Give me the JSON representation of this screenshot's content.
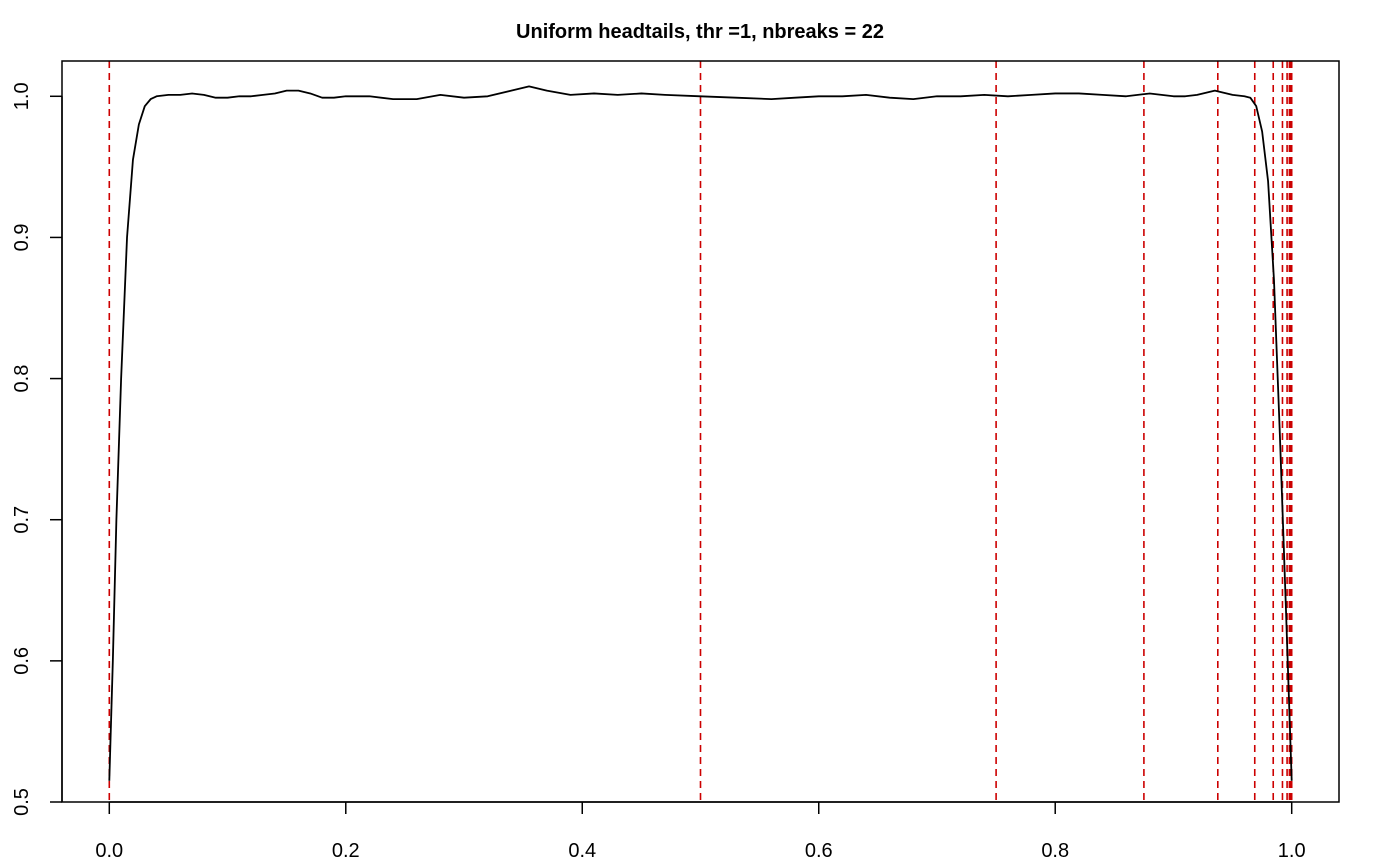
{
  "chart_data": {
    "type": "line",
    "title": "Uniform headtails, thr =1, nbreaks = 22",
    "xlabel": "",
    "ylabel": "",
    "xlim": [
      -0.04,
      1.04
    ],
    "ylim": [
      0.5,
      1.025
    ],
    "x_ticks": [
      "0.0",
      "0.2",
      "0.4",
      "0.6",
      "0.8",
      "1.0"
    ],
    "y_ticks": [
      "0.5",
      "0.6",
      "0.7",
      "0.8",
      "0.9",
      "1.0"
    ],
    "grid": false,
    "series": [
      {
        "color": "#000000",
        "x": [
          0.0,
          0.003,
          0.006,
          0.01,
          0.015,
          0.02,
          0.025,
          0.03,
          0.035,
          0.04,
          0.05,
          0.06,
          0.07,
          0.08,
          0.09,
          0.1,
          0.11,
          0.12,
          0.13,
          0.14,
          0.15,
          0.16,
          0.17,
          0.18,
          0.19,
          0.2,
          0.22,
          0.24,
          0.26,
          0.28,
          0.3,
          0.32,
          0.34,
          0.355,
          0.37,
          0.39,
          0.41,
          0.43,
          0.45,
          0.47,
          0.5,
          0.53,
          0.56,
          0.58,
          0.6,
          0.62,
          0.64,
          0.66,
          0.68,
          0.7,
          0.72,
          0.74,
          0.76,
          0.78,
          0.8,
          0.82,
          0.84,
          0.86,
          0.88,
          0.9,
          0.91,
          0.92,
          0.935,
          0.95,
          0.96,
          0.965,
          0.97,
          0.975,
          0.98,
          0.985,
          0.99,
          0.995,
          1.0
        ],
        "y": [
          0.515,
          0.6,
          0.7,
          0.8,
          0.9,
          0.955,
          0.98,
          0.993,
          0.998,
          1.0,
          1.001,
          1.001,
          1.002,
          1.001,
          0.999,
          0.999,
          1.0,
          1.0,
          1.001,
          1.002,
          1.004,
          1.004,
          1.002,
          0.999,
          0.999,
          1.0,
          1.0,
          0.998,
          0.998,
          1.001,
          0.999,
          1.0,
          1.004,
          1.007,
          1.004,
          1.001,
          1.002,
          1.001,
          1.002,
          1.001,
          1.0,
          0.999,
          0.998,
          0.999,
          1.0,
          1.0,
          1.001,
          0.999,
          0.998,
          1.0,
          1.0,
          1.001,
          1.0,
          1.001,
          1.002,
          1.002,
          1.001,
          1.0,
          1.002,
          1.0,
          1.0,
          1.001,
          1.004,
          1.001,
          1.0,
          0.999,
          0.993,
          0.975,
          0.94,
          0.87,
          0.76,
          0.64,
          0.515
        ]
      }
    ],
    "vlines": {
      "color": "#cc0000",
      "style": "dashed",
      "x": [
        0.0,
        0.5,
        0.75,
        0.875,
        0.9375,
        0.96875,
        0.984375,
        0.9921875,
        0.99609375,
        0.998046875,
        0.9990234375,
        0.99951171875,
        0.999755859375,
        0.9998779296875,
        0.99993896484375,
        0.999969482421875,
        0.9999847412109375,
        0.9999923706054688,
        0.9999961853027344,
        0.9999980926513672,
        0.9999990463256836,
        1.0
      ]
    }
  }
}
